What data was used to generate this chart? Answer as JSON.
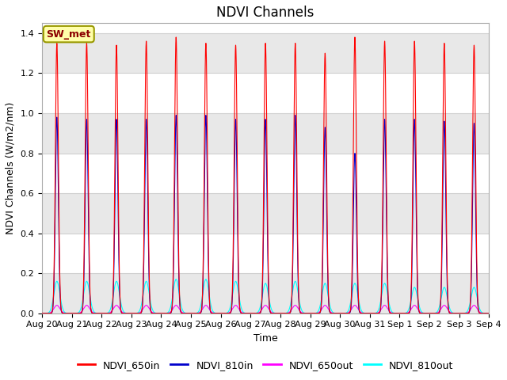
{
  "title": "NDVI Channels",
  "ylabel": "NDVI Channels (W/m2/nm)",
  "xlabel": "Time",
  "ylim": [
    0,
    1.45
  ],
  "num_days": 15,
  "xtick_labels": [
    "Aug 20",
    "Aug 21",
    "Aug 22",
    "Aug 23",
    "Aug 24",
    "Aug 25",
    "Aug 26",
    "Aug 27",
    "Aug 28",
    "Aug 29",
    "Aug 30",
    "Aug 31",
    "Sep 1",
    "Sep 2",
    "Sep 3",
    "Sep 4"
  ],
  "peak_650in": [
    1.35,
    1.35,
    1.34,
    1.36,
    1.38,
    1.35,
    1.34,
    1.35,
    1.35,
    1.3,
    1.38,
    1.36,
    1.36,
    1.35,
    1.34
  ],
  "peak_810in": [
    0.98,
    0.97,
    0.97,
    0.97,
    0.99,
    0.99,
    0.97,
    0.97,
    0.99,
    0.93,
    0.8,
    0.97,
    0.97,
    0.96,
    0.95
  ],
  "peak_650out": [
    0.04,
    0.04,
    0.04,
    0.04,
    0.04,
    0.04,
    0.04,
    0.04,
    0.04,
    0.04,
    0.04,
    0.04,
    0.04,
    0.04,
    0.04
  ],
  "peak_810out": [
    0.16,
    0.16,
    0.16,
    0.16,
    0.17,
    0.17,
    0.16,
    0.15,
    0.16,
    0.15,
    0.15,
    0.15,
    0.13,
    0.13,
    0.13
  ],
  "sigma_in": 0.05,
  "sigma_out_factor": 2.0,
  "color_650in": "#ff0000",
  "color_810in": "#0000cc",
  "color_650out": "#ff00ff",
  "color_810out": "#00ffff",
  "legend_label": "SW_met",
  "legend_entries": [
    "NDVI_650in",
    "NDVI_810in",
    "NDVI_650out",
    "NDVI_810out"
  ],
  "fig_bg": "#ffffff",
  "plot_bg": "#ffffff",
  "grid_color": "#d0d0d0",
  "title_fontsize": 12,
  "label_fontsize": 9,
  "tick_fontsize": 8
}
